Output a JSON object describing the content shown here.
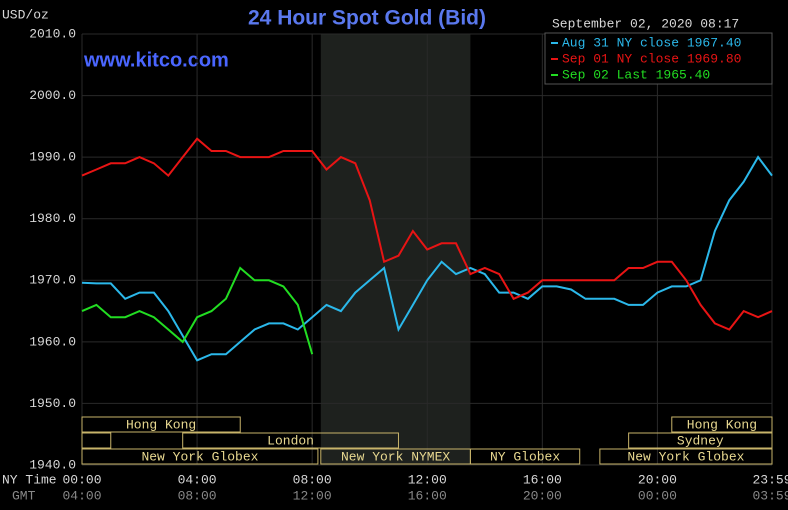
{
  "chart_data": {
    "type": "line",
    "title": "24 Hour Spot Gold (Bid)",
    "subtitle": "September 02, 2020 08:17",
    "watermark": "www.kitco.com",
    "y_label": "USD/oz",
    "x_label": "NY Time",
    "x2_label": "GMT",
    "x": [
      0,
      0.5,
      1,
      1.5,
      2,
      2.5,
      3,
      3.5,
      4,
      4.5,
      5,
      5.5,
      6,
      6.5,
      7,
      7.5,
      8,
      8.5,
      9,
      9.5,
      10,
      10.5,
      11,
      11.5,
      12,
      12.5,
      13,
      13.5,
      14,
      14.5,
      15,
      15.5,
      16,
      16.5,
      17,
      17.5,
      18,
      18.5,
      19,
      19.5,
      20,
      20.5,
      21,
      21.5,
      22,
      22.5,
      23,
      23.5,
      23.983
    ],
    "series": [
      {
        "name": "Aug 31 NY close 1967.40",
        "color": "#2bb8ea",
        "values": [
          1969.6,
          1969.5,
          1969.5,
          1967,
          1968,
          1968,
          1965,
          1961,
          1957,
          1958,
          1958,
          1960,
          1962,
          1963,
          1963,
          1962,
          1964,
          1966,
          1965,
          1968,
          1970,
          1972,
          1962,
          1966,
          1970,
          1973,
          1971,
          1972,
          1971,
          1968,
          1968,
          1967,
          1969,
          1969,
          1968.5,
          1967,
          1967,
          1967,
          1966,
          1966,
          1968,
          1969,
          1969,
          1970,
          1978,
          1983,
          1986,
          1990,
          1987
        ]
      },
      {
        "name": "Sep 01 NY close 1969.80",
        "color": "#e81414",
        "values": [
          1987,
          1988,
          1989,
          1989,
          1990,
          1989,
          1987,
          1990,
          1993,
          1991,
          1991,
          1990,
          1990,
          1990,
          1991,
          1991,
          1991,
          1988,
          1990,
          1989,
          1983,
          1973,
          1974,
          1978,
          1975,
          1976,
          1976,
          1971,
          1972,
          1971,
          1967,
          1968,
          1970,
          1970,
          1970,
          1970,
          1970,
          1970,
          1972,
          1972,
          1973,
          1973,
          1970,
          1966,
          1963,
          1962,
          1965,
          1964,
          1965
        ]
      },
      {
        "name": "Sep 02 Last 1965.40",
        "color": "#22dd22",
        "values": [
          1965,
          1966,
          1964,
          1964,
          1965,
          1964,
          1962,
          1960,
          1964,
          1965,
          1967,
          1972,
          1970,
          1970,
          1969,
          1966,
          1958,
          null,
          null,
          null,
          null,
          null,
          null,
          null,
          null,
          null,
          null,
          null,
          null,
          null,
          null,
          null,
          null,
          null,
          null,
          null,
          null,
          null,
          null,
          null,
          null,
          null,
          null,
          null,
          null,
          null,
          null,
          null,
          null
        ]
      }
    ],
    "xlim": [
      0,
      23.983
    ],
    "xticks": [
      {
        "value": 0,
        "label": "00:00"
      },
      {
        "value": 4,
        "label": "04:00"
      },
      {
        "value": 8,
        "label": "08:00"
      },
      {
        "value": 12,
        "label": "12:00"
      },
      {
        "value": 16,
        "label": "16:00"
      },
      {
        "value": 20,
        "label": "20:00"
      },
      {
        "value": 23.983,
        "label": "23:59"
      }
    ],
    "x2ticks": [
      {
        "value": 0,
        "label": "04:00"
      },
      {
        "value": 4,
        "label": "08:00"
      },
      {
        "value": 8,
        "label": "12:00"
      },
      {
        "value": 12,
        "label": "16:00"
      },
      {
        "value": 16,
        "label": "20:00"
      },
      {
        "value": 20,
        "label": "00:00"
      },
      {
        "value": 23.983,
        "label": "03:59"
      }
    ],
    "ylim": [
      1940,
      2010
    ],
    "yticks": [
      {
        "value": 1940,
        "label": "1940.0"
      },
      {
        "value": 1950,
        "label": "1950.0"
      },
      {
        "value": 1960,
        "label": "1960.0"
      },
      {
        "value": 1970,
        "label": "1970.0"
      },
      {
        "value": 1980,
        "label": "1980.0"
      },
      {
        "value": 1990,
        "label": "1990.0"
      },
      {
        "value": 2000,
        "label": "2000.0"
      },
      {
        "value": 2010,
        "label": "2010.0"
      }
    ],
    "grid": true,
    "shaded_session": [
      8.3,
      13.5
    ],
    "session_rows": [
      [
        {
          "label": "Hong Kong",
          "start": 0,
          "end": 5.5
        },
        {
          "label": "Hong Kong",
          "start": 20.5,
          "end": 24
        }
      ],
      [
        {
          "label": null,
          "start": 0,
          "end": 1
        },
        {
          "label": "London",
          "start": 3.5,
          "end": 11
        },
        {
          "label": "Sydney",
          "start": 19,
          "end": 24
        }
      ],
      [
        {
          "label": "New York Globex",
          "start": 0,
          "end": 8.2
        },
        {
          "label": "New York NYMEX",
          "start": 8.3,
          "end": 13.5
        },
        {
          "label": "NY Globex",
          "start": 13.5,
          "end": 17.3
        },
        {
          "label": "New York Globex",
          "start": 18,
          "end": 24
        }
      ]
    ]
  }
}
